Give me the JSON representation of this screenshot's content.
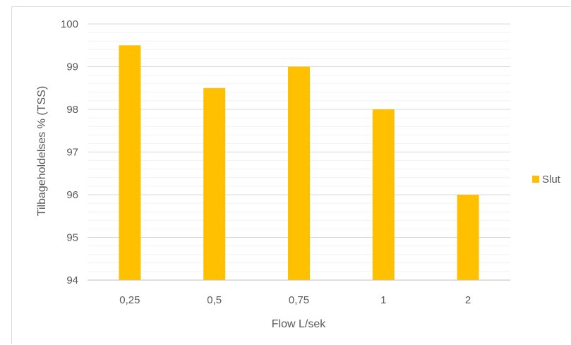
{
  "chart_data": {
    "type": "bar",
    "title": "",
    "xlabel": "Flow L/sek",
    "ylabel": "Tilbageholdelses % (TSS)",
    "categories": [
      "0,25",
      "0,5",
      "0,75",
      "1",
      "2"
    ],
    "series": [
      {
        "name": "Slut",
        "values": [
          99.5,
          98.5,
          99.0,
          98.0,
          96.0
        ],
        "color": "#ffc000"
      }
    ],
    "ylim": [
      94,
      100
    ],
    "yticks": [
      "94",
      "95",
      "96",
      "97",
      "98",
      "99",
      "100"
    ],
    "major_step": 1,
    "minor_step": 0.2,
    "grid": true,
    "legend_position": "right"
  }
}
